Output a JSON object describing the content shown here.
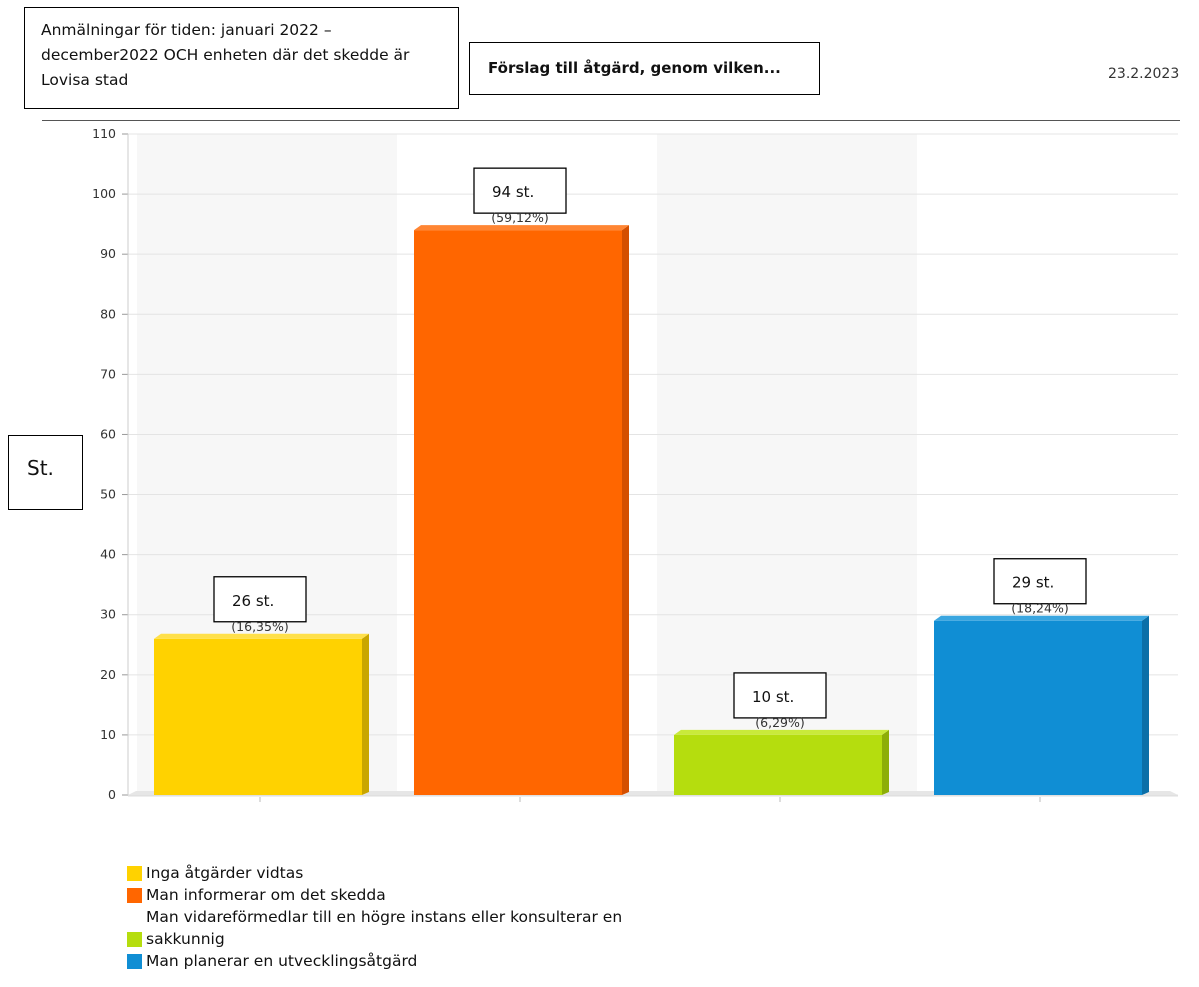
{
  "header": {
    "title": "Anmälningar för tiden: januari 2022 – december2022 OCH enheten där det skedde är Lovisa stad",
    "subtitle": "Förslag till åtgärd, genom vilken...",
    "date": "23.2.2023"
  },
  "chart_data": {
    "type": "bar",
    "title": "Förslag till åtgärd, genom vilken...",
    "ylabel": "St.",
    "xlabel": "",
    "ylim": [
      0,
      110
    ],
    "yticks": [
      0,
      10,
      20,
      30,
      40,
      50,
      60,
      70,
      80,
      90,
      100,
      110
    ],
    "grid": true,
    "legend_position": "bottom-left",
    "categories": [
      "Inga åtgärder vidtas",
      "Man informerar om det skedda",
      "Man vidareförmedlar till en högre instans eller konsulterar en sakkunnig",
      "Man planerar en utvecklingsåtgärd"
    ],
    "values": [
      26,
      94,
      10,
      29
    ],
    "value_labels": [
      "26 st.",
      "94 st.",
      "10 st.",
      "29 st."
    ],
    "percent_labels": [
      "(16,35%)",
      "(59,12%)",
      "(6,29%)",
      "(18,24%)"
    ],
    "colors": [
      "#FFD200",
      "#FF6600",
      "#B5DD0E",
      "#108ED4"
    ],
    "side_colors": [
      "#C9A600",
      "#D44F00",
      "#8DAE08",
      "#0B6FA8"
    ],
    "top_colors": [
      "#FFE04A",
      "#FF8533",
      "#C9EA3A",
      "#3AA6E0"
    ]
  }
}
